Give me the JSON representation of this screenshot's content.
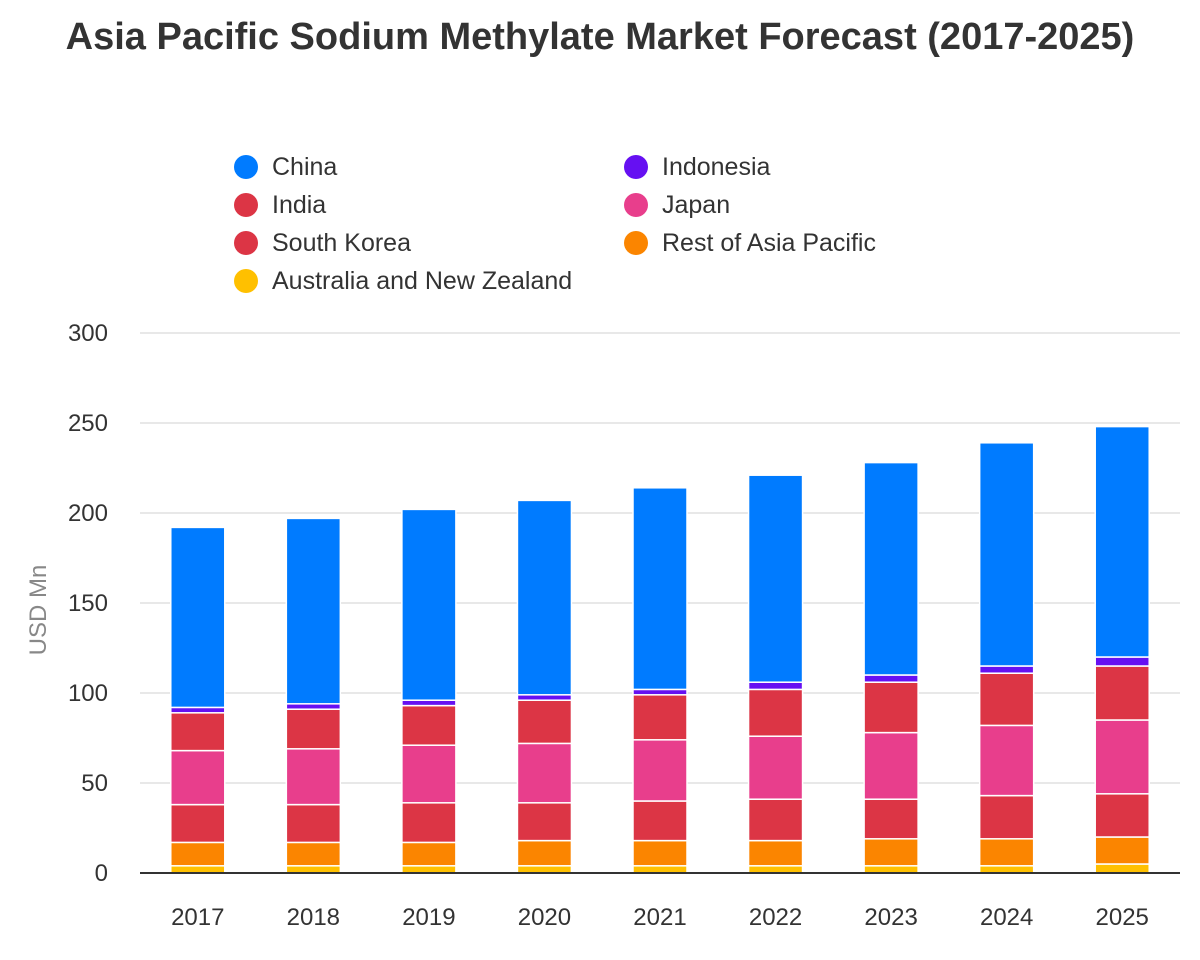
{
  "chart_data": {
    "type": "bar",
    "stacked": true,
    "title": "Asia Pacific Sodium Methylate Market Forecast (2017-2025)",
    "ylabel": "USD Mn",
    "xlabel": "",
    "ylim": [
      0,
      300
    ],
    "yticks": [
      "0",
      "50",
      "100",
      "150",
      "200",
      "250",
      "300"
    ],
    "grid": true,
    "legend_position": "top",
    "categories": [
      "2017",
      "2018",
      "2019",
      "2020",
      "2021",
      "2022",
      "2023",
      "2024",
      "2025"
    ],
    "series": [
      {
        "name": "Australia and New Zealand",
        "color": "#ffc000",
        "values": [
          4,
          4,
          4,
          4,
          4,
          4,
          4,
          4,
          5
        ]
      },
      {
        "name": "Rest of Asia Pacific",
        "color": "#fb8500",
        "values": [
          13,
          13,
          13,
          14,
          14,
          14,
          15,
          15,
          15
        ]
      },
      {
        "name": "South Korea",
        "color": "#dc3545",
        "values": [
          21,
          21,
          22,
          21,
          22,
          23,
          22,
          24,
          24
        ]
      },
      {
        "name": "Japan",
        "color": "#e83e8c",
        "values": [
          30,
          31,
          32,
          33,
          34,
          35,
          37,
          39,
          41
        ]
      },
      {
        "name": "India",
        "color": "#dc3545",
        "values": [
          21,
          22,
          22,
          24,
          25,
          26,
          28,
          29,
          30
        ]
      },
      {
        "name": "Indonesia",
        "color": "#6610f2",
        "values": [
          3,
          3,
          3,
          3,
          3,
          4,
          4,
          4,
          5
        ]
      },
      {
        "name": "China",
        "color": "#007bff",
        "values": [
          100,
          103,
          106,
          108,
          112,
          115,
          118,
          124,
          128
        ]
      }
    ]
  },
  "legend_order": [
    "China",
    "Indonesia",
    "India",
    "Japan",
    "South Korea",
    "Rest of Asia Pacific",
    "Australia and New Zealand"
  ],
  "colors": {
    "axis": "#333333",
    "grid": "#e0e0e0",
    "text": "#333333",
    "ylabel": "#888888"
  }
}
